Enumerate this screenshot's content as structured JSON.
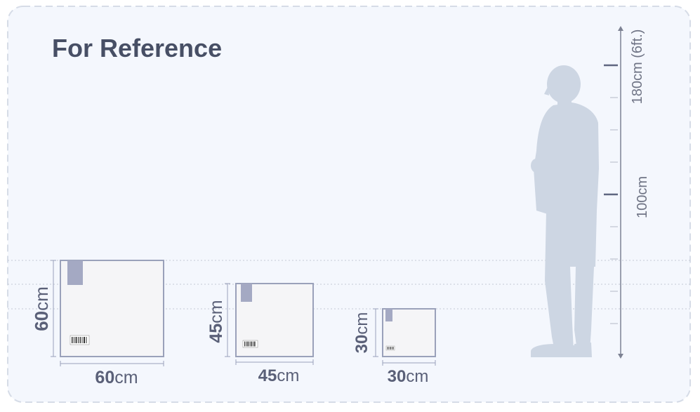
{
  "title": "For Reference",
  "boxes": [
    {
      "width_value": "60",
      "height_value": "60",
      "unit": "cm"
    },
    {
      "width_value": "45",
      "height_value": "45",
      "unit": "cm"
    },
    {
      "width_value": "30",
      "height_value": "30",
      "unit": "cm"
    }
  ],
  "height_scale": {
    "label_top": "180cm (6ft.)",
    "label_mid": "100cm"
  },
  "icons": {
    "person": "person-silhouette-icon",
    "barcode": "barcode-icon",
    "shipping_label": "shipping-label-icon"
  },
  "colors": {
    "panel_bg": "#f4f7fd",
    "panel_border": "#d6dce7",
    "box_fill": "#f5f5f7",
    "box_stroke": "#9aa1ba",
    "label_fill": "#a4a9c3",
    "person": "#cdd6e3",
    "text": "#474f65"
  }
}
